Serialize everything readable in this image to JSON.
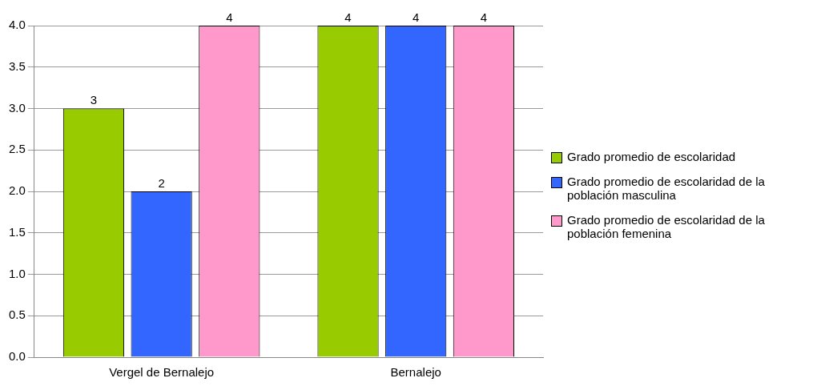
{
  "chart_data": {
    "type": "bar",
    "categories": [
      "Vergel de Bernalejo",
      "Bernalejo"
    ],
    "series": [
      {
        "name": "Grado promedio de escolaridad",
        "color": "#99cc00",
        "values": [
          3,
          4
        ]
      },
      {
        "name": "Grado promedio de escolaridad de la población masculina",
        "color": "#3366ff",
        "values": [
          2,
          4
        ]
      },
      {
        "name": "Grado promedio de escolaridad de la población femenina",
        "color": "#ff99cc",
        "values": [
          4,
          4
        ]
      }
    ],
    "ylim": [
      0,
      4
    ],
    "yticks": [
      {
        "value": 0,
        "label": "0.0"
      },
      {
        "value": 0.5,
        "label": "0.5"
      },
      {
        "value": 1,
        "label": "1.0"
      },
      {
        "value": 1.5,
        "label": "1.5"
      },
      {
        "value": 2,
        "label": "2.0"
      },
      {
        "value": 2.5,
        "label": "2.5"
      },
      {
        "value": 3,
        "label": "3.0"
      },
      {
        "value": 3.5,
        "label": "3.5"
      },
      {
        "value": 4,
        "label": "4.0"
      }
    ],
    "grid": "y",
    "legend": "right",
    "data_labels": true
  }
}
